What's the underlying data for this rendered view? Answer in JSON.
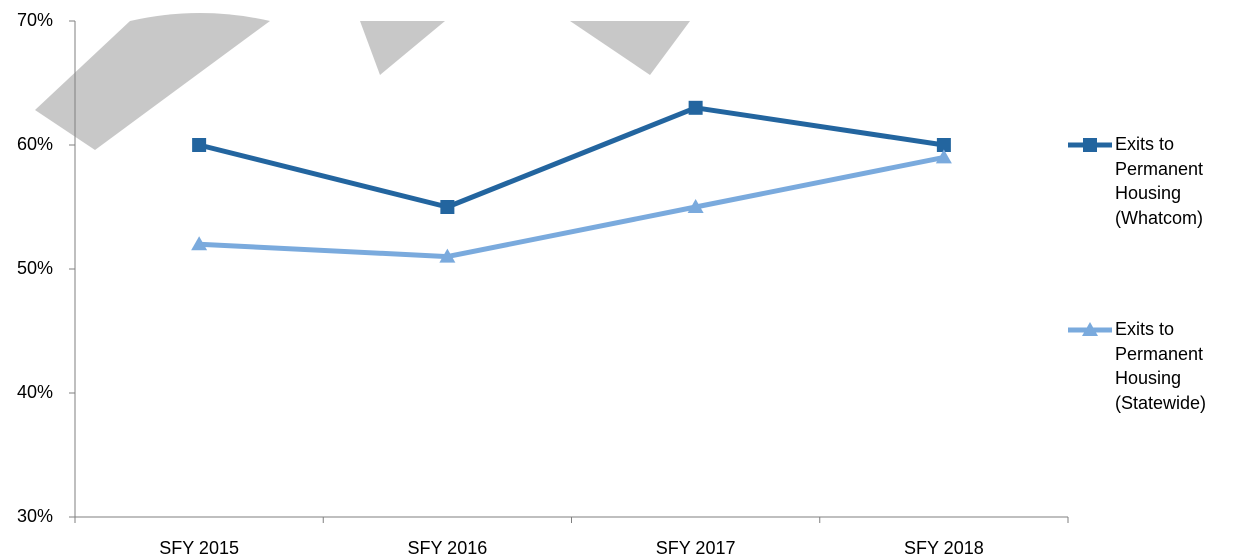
{
  "chart_data": {
    "type": "line",
    "categories": [
      "SFY 2015",
      "SFY 2016",
      "SFY 2017",
      "SFY 2018"
    ],
    "series": [
      {
        "name": "Exits to Permanent Housing (Whatcom)",
        "color": "#23659f",
        "marker": "square",
        "values": [
          60,
          55,
          63,
          60
        ]
      },
      {
        "name": "Exits to Permanent Housing (Statewide)",
        "color": "#7aaadd",
        "marker": "triangle",
        "values": [
          52,
          51,
          55,
          59
        ]
      }
    ],
    "ylim": [
      30,
      70
    ],
    "yticks": [
      {
        "value": 30,
        "label": "30%"
      },
      {
        "value": 40,
        "label": "40%"
      },
      {
        "value": 50,
        "label": "50%"
      },
      {
        "value": 60,
        "label": "60%"
      },
      {
        "value": 70,
        "label": "70%"
      }
    ],
    "legend": "right"
  }
}
